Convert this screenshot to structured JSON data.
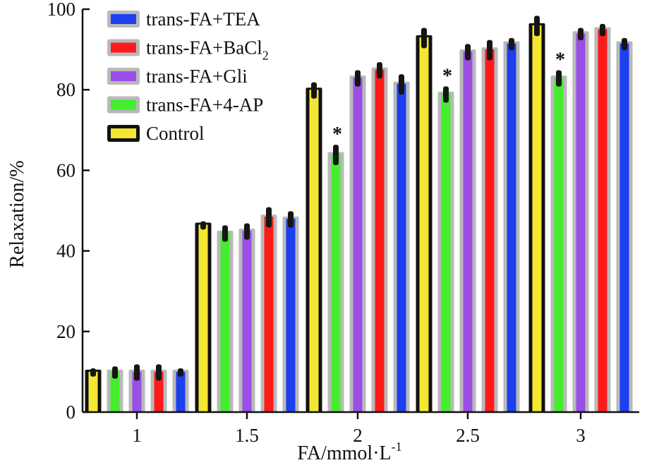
{
  "chart_data": {
    "type": "bar",
    "xlabel": "FA/mmol·L",
    "xlabel_sup": "-1",
    "ylabel": "Relaxation/%",
    "ylim": [
      0,
      100
    ],
    "yticks": [
      0,
      20,
      40,
      60,
      80,
      100
    ],
    "categories": [
      "1",
      "1.5",
      "2",
      "2.5",
      "3"
    ],
    "series": [
      {
        "name": "Control",
        "color": "#f5e632",
        "values": [
          10,
          46.5,
          80,
          93,
          96
        ],
        "errors": [
          0.5,
          0.5,
          1.5,
          2,
          2
        ]
      },
      {
        "name": "trans-FA+4-AP",
        "color": "#44ee2e",
        "values": [
          10,
          44.5,
          64,
          79,
          83
        ],
        "errors": [
          1,
          1.5,
          2,
          1.5,
          1.5
        ]
      },
      {
        "name": "trans-FA+Gli",
        "color": "#9a4ee6",
        "values": [
          10,
          45,
          83,
          89.5,
          94
        ],
        "errors": [
          1.5,
          1.5,
          1.5,
          1.5,
          1
        ]
      },
      {
        "name": "trans-FA+BaCl",
        "name_sub": "2",
        "color": "#ff1a1a",
        "values": [
          10,
          48.5,
          85,
          90,
          95
        ],
        "errors": [
          1.5,
          2,
          1.5,
          2,
          1
        ]
      },
      {
        "name": "trans-FA+TEA",
        "color": "#1c3ff0",
        "values": [
          10,
          48,
          81.5,
          91.5,
          91.5
        ],
        "errors": [
          0.5,
          1.5,
          2,
          1,
          1
        ]
      }
    ],
    "legend_order": [
      "trans-FA+TEA",
      "trans-FA+BaCl",
      "trans-FA+Gli",
      "trans-FA+4-AP",
      "Control"
    ],
    "annotations": [
      {
        "text": "*",
        "category": "2",
        "series": "trans-FA+4-AP"
      },
      {
        "text": "*",
        "category": "2.5",
        "series": "trans-FA+4-AP"
      },
      {
        "text": "*",
        "category": "3",
        "series": "trans-FA+4-AP"
      }
    ],
    "legend_position": "top-left",
    "grid": false
  }
}
